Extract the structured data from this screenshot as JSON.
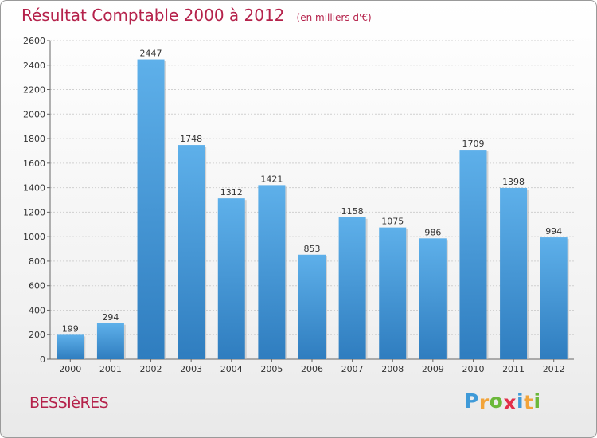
{
  "chart_data": {
    "type": "bar",
    "title": "Résultat Comptable 2000 à 2012",
    "subtitle": "(en milliers d'€)",
    "categories": [
      "2000",
      "2001",
      "2002",
      "2003",
      "2004",
      "2005",
      "2006",
      "2007",
      "2008",
      "2009",
      "2010",
      "2011",
      "2012"
    ],
    "values": [
      199,
      294,
      2447,
      1748,
      1312,
      1421,
      853,
      1158,
      1075,
      986,
      1709,
      1398,
      994
    ],
    "ylim": [
      0,
      2600
    ],
    "yticks": [
      0,
      200,
      400,
      600,
      800,
      1000,
      1200,
      1400,
      1600,
      1800,
      2000,
      2200,
      2400,
      2600
    ],
    "grid": true,
    "bar_color_top": "#5eb0ea",
    "bar_color_bottom": "#2f7dbf",
    "title_color": "#b5224b"
  },
  "commune": "BESSIèRES",
  "logo": {
    "letters": [
      "P",
      "r",
      "o",
      "x",
      "i",
      "t",
      "i"
    ],
    "colors": [
      "#3f9ad8",
      "#f2a43a",
      "#6bb83a",
      "#e2304a",
      "#3f9ad8",
      "#f2a43a",
      "#6bb83a"
    ]
  }
}
